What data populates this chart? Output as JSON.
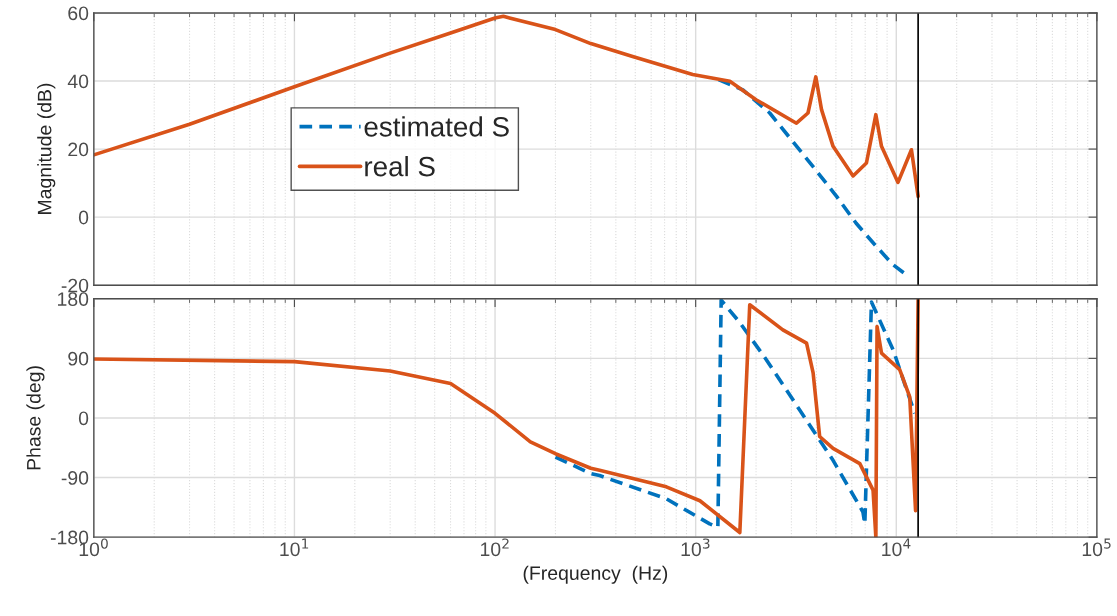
{
  "chart_data": [
    {
      "type": "line",
      "ylabel": "Magnitude (dB)",
      "log": "x",
      "xlim": [
        1,
        100000
      ],
      "ylim": [
        -20,
        60
      ],
      "xticks": [
        1,
        10,
        100,
        1000,
        10000,
        100000
      ],
      "yticks": [
        -20,
        0,
        20,
        40,
        60
      ],
      "tick_labels": "y",
      "grid": true,
      "legend": "center",
      "ref_lines": [
        {
          "axis": "x",
          "value": 12850,
          "color": "#000000"
        }
      ],
      "series": [
        {
          "name": "estimated S",
          "color": "#0072bd",
          "line_style": "dashed",
          "x": [
            1300,
            1720,
            2340,
            3050,
            3840,
            5040,
            6310,
            7950,
            9640,
            11250
          ],
          "values": [
            40.4,
            37.4,
            30.6,
            22.2,
            14.9,
            6.1,
            -1.8,
            -8.6,
            -14,
            -17
          ]
        },
        {
          "name": "real S",
          "color": "#d95319",
          "line_style": "solid",
          "x": [
            1,
            3,
            10,
            30,
            60,
            100,
            110,
            200,
            300,
            485,
            966,
            1480,
            2000,
            3180,
            3630,
            3970,
            4240,
            4840,
            6090,
            7100,
            7910,
            8440,
            10200,
            11900,
            12850
          ],
          "values": [
            18.3,
            27.3,
            38.3,
            48.2,
            54.1,
            58.5,
            59,
            55.1,
            51,
            47.2,
            41.9,
            39.9,
            34.5,
            27.6,
            30.6,
            41.2,
            31.6,
            20.8,
            12.1,
            15.9,
            30.1,
            20.8,
            10.2,
            19.8,
            6.1
          ]
        }
      ]
    },
    {
      "type": "line",
      "xlabel": "(Frequency  (Hz)",
      "ylabel": "Phase (deg)",
      "log": "x",
      "xlim": [
        1,
        100000
      ],
      "ylim": [
        -180,
        180
      ],
      "xticks": [
        {
          "value": 1,
          "label": "10$^{0}$"
        },
        {
          "value": 10,
          "label": "10$^{1}$"
        },
        {
          "value": 100,
          "label": "10$^{2}$"
        },
        {
          "value": 1000,
          "label": "10$^{3}$"
        },
        {
          "value": 10000,
          "label": "10$^{4}$"
        },
        {
          "value": 100000,
          "label": "10$^{5}$"
        }
      ],
      "yticks": [
        -180,
        -90,
        0,
        90,
        180
      ],
      "grid": true,
      "ref_lines": [
        {
          "axis": "x",
          "value": 12850,
          "color": "#000000"
        }
      ],
      "series": [
        {
          "color": "#0072bd",
          "line_style": "dashed",
          "x": [
            200,
            300,
            332,
            714,
            1175,
            1290,
            1340,
            1660,
            2250,
            3300,
            4840,
            6820,
            6970,
            7520,
            9640,
            12360
          ],
          "values": [
            -59,
            -84,
            -87,
            -122,
            -160,
            -165,
            178,
            144,
            88,
            12,
            -64,
            -142,
            -160,
            175,
            103,
            7
          ]
        },
        {
          "color": "#d95319",
          "line_style": "solid",
          "x": [
            1,
            10,
            30,
            60,
            100,
            150,
            200,
            300,
            332,
            714,
            1050,
            1660,
            1860,
            2720,
            3570,
            3850,
            4150,
            4840,
            6580,
            7660,
            7910,
            8020,
            8440,
            10400,
            11670,
            12480,
            12850
          ],
          "values": [
            89,
            85,
            71,
            52,
            7,
            -36,
            -54,
            -76,
            -79,
            -104,
            -125,
            -173,
            171,
            133,
            113,
            68,
            -28,
            -46,
            -69,
            -109,
            -180,
            138,
            98,
            73,
            32,
            -140,
            179
          ]
        }
      ]
    }
  ]
}
